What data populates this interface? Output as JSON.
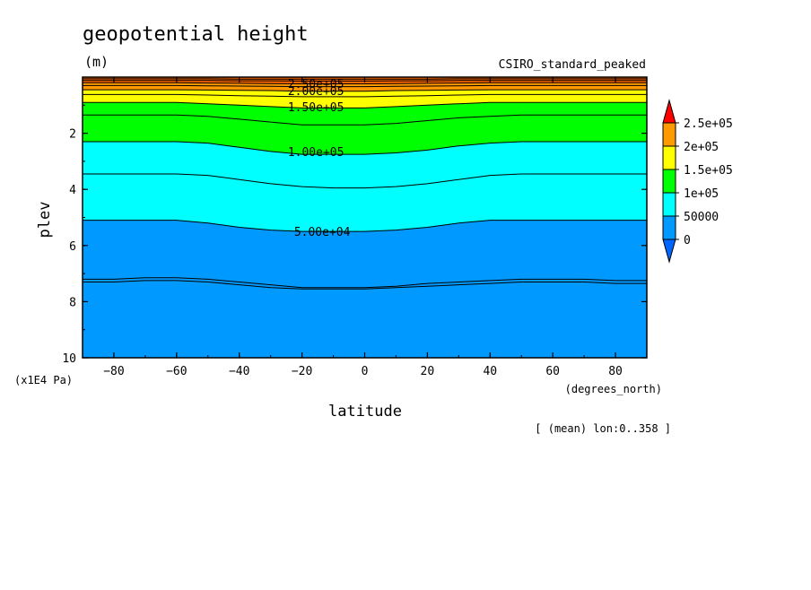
{
  "title": "geopotential height",
  "units": "(m)",
  "model": "CSIRO_standard_peaked",
  "footer_note": "[ (mean) lon:0..358 ]",
  "chart_data": {
    "type": "contour",
    "title": "geopotential height",
    "xlabel": "latitude",
    "xunits": "(degrees_north)",
    "ylabel": "plev",
    "yunits": "(x1E4 Pa)",
    "xlim": [
      -90,
      90
    ],
    "ylim": [
      10,
      0
    ],
    "x_ticks": [
      -80,
      -60,
      -40,
      -20,
      0,
      20,
      40,
      60,
      80
    ],
    "y_ticks": [
      2,
      4,
      6,
      8,
      10
    ],
    "colorbar": {
      "labels": [
        "2.5e+05",
        "2e+05",
        "1.5e+05",
        "1e+05",
        "50000",
        "0"
      ],
      "colors": [
        "#ff0000",
        "#ff9900",
        "#ffff00",
        "#00ff00",
        "#00ffff",
        "#0099ff",
        "#0066ff"
      ]
    },
    "filled_levels": [
      {
        "min": 0,
        "max": 50000,
        "color": "#0099ff",
        "boundary": [
          5.1,
          5.1,
          5.1,
          5.1,
          5.2,
          5.35,
          5.45,
          5.5,
          5.5,
          5.5,
          5.45,
          5.35,
          5.2,
          5.1,
          5.1,
          5.1,
          5.1,
          5.1,
          5.1
        ]
      },
      {
        "min": 50000,
        "max": 100000,
        "color": "#00ffff",
        "boundary": [
          2.3,
          2.3,
          2.3,
          2.3,
          2.35,
          2.5,
          2.65,
          2.75,
          2.75,
          2.75,
          2.7,
          2.6,
          2.45,
          2.35,
          2.3,
          2.3,
          2.3,
          2.3,
          2.3
        ]
      },
      {
        "min": 100000,
        "max": 150000,
        "color": "#00ff00",
        "boundary": [
          0.9,
          0.9,
          0.9,
          0.9,
          0.95,
          1.0,
          1.05,
          1.1,
          1.1,
          1.1,
          1.05,
          1.0,
          0.95,
          0.9,
          0.9,
          0.9,
          0.9,
          0.9,
          0.9
        ]
      },
      {
        "min": 150000,
        "max": 200000,
        "color": "#ffff00",
        "boundary": [
          0.45,
          0.45,
          0.45,
          0.45,
          0.46,
          0.47,
          0.48,
          0.5,
          0.5,
          0.5,
          0.48,
          0.47,
          0.46,
          0.45,
          0.45,
          0.45,
          0.45,
          0.45,
          0.45
        ]
      },
      {
        "min": 200000,
        "max": 250000,
        "color": "#ff9900",
        "boundary": [
          0.2,
          0.2,
          0.2,
          0.2,
          0.21,
          0.22,
          0.23,
          0.24,
          0.24,
          0.24,
          0.23,
          0.22,
          0.21,
          0.2,
          0.2,
          0.2,
          0.2,
          0.2,
          0.2
        ]
      }
    ],
    "contour_lines": [
      {
        "value": 25000,
        "label": "",
        "y": [
          7.2,
          7.2,
          7.15,
          7.15,
          7.2,
          7.3,
          7.4,
          7.5,
          7.5,
          7.5,
          7.45,
          7.35,
          7.3,
          7.25,
          7.2,
          7.2,
          7.2,
          7.25,
          7.25
        ]
      },
      {
        "value": 25000,
        "label": "",
        "y": [
          7.3,
          7.3,
          7.25,
          7.25,
          7.3,
          7.4,
          7.5,
          7.55,
          7.55,
          7.55,
          7.5,
          7.45,
          7.4,
          7.35,
          7.3,
          7.3,
          7.3,
          7.35,
          7.35
        ]
      },
      {
        "value": 50000,
        "label": "5.00e+04",
        "label_x": -25,
        "y": [
          5.1,
          5.1,
          5.1,
          5.1,
          5.2,
          5.35,
          5.45,
          5.5,
          5.5,
          5.5,
          5.45,
          5.35,
          5.2,
          5.1,
          5.1,
          5.1,
          5.1,
          5.1,
          5.1
        ]
      },
      {
        "value": 75000,
        "label": "",
        "y": [
          3.45,
          3.45,
          3.45,
          3.45,
          3.5,
          3.65,
          3.8,
          3.9,
          3.95,
          3.95,
          3.9,
          3.8,
          3.65,
          3.5,
          3.45,
          3.45,
          3.45,
          3.45,
          3.45
        ]
      },
      {
        "value": 100000,
        "label": "1.00e+05",
        "label_x": -27,
        "y": [
          2.3,
          2.3,
          2.3,
          2.3,
          2.35,
          2.5,
          2.65,
          2.75,
          2.75,
          2.75,
          2.7,
          2.6,
          2.45,
          2.35,
          2.3,
          2.3,
          2.3,
          2.3,
          2.3
        ]
      },
      {
        "value": 125000,
        "label": "",
        "y": [
          1.35,
          1.35,
          1.35,
          1.35,
          1.4,
          1.5,
          1.6,
          1.7,
          1.7,
          1.7,
          1.65,
          1.55,
          1.45,
          1.4,
          1.35,
          1.35,
          1.35,
          1.35,
          1.35
        ]
      },
      {
        "value": 150000,
        "label": "1.50e+05",
        "label_x": -27,
        "y": [
          0.9,
          0.9,
          0.9,
          0.9,
          0.95,
          1.0,
          1.05,
          1.1,
          1.1,
          1.1,
          1.05,
          1.0,
          0.95,
          0.9,
          0.9,
          0.9,
          0.9,
          0.9,
          0.9
        ]
      },
      {
        "value": 175000,
        "label": "",
        "y": [
          0.62,
          0.62,
          0.62,
          0.62,
          0.64,
          0.66,
          0.68,
          0.7,
          0.7,
          0.7,
          0.68,
          0.66,
          0.64,
          0.62,
          0.62,
          0.62,
          0.62,
          0.62,
          0.62
        ]
      },
      {
        "value": 200000,
        "label": "2.00e+05",
        "label_x": -27,
        "y": [
          0.45,
          0.45,
          0.45,
          0.45,
          0.46,
          0.47,
          0.48,
          0.5,
          0.5,
          0.5,
          0.48,
          0.47,
          0.46,
          0.45,
          0.45,
          0.45,
          0.45,
          0.45,
          0.45
        ]
      },
      {
        "value": 225000,
        "label": "",
        "y": [
          0.3,
          0.3,
          0.3,
          0.3,
          0.31,
          0.32,
          0.33,
          0.34,
          0.34,
          0.34,
          0.33,
          0.32,
          0.31,
          0.3,
          0.3,
          0.3,
          0.3,
          0.3,
          0.3
        ]
      },
      {
        "value": 250000,
        "label": "2.50e+05",
        "label_x": -27,
        "y": [
          0.2,
          0.2,
          0.2,
          0.2,
          0.21,
          0.22,
          0.23,
          0.24,
          0.24,
          0.24,
          0.23,
          0.22,
          0.21,
          0.2,
          0.2,
          0.2,
          0.2,
          0.2,
          0.2
        ]
      },
      {
        "value": 275000,
        "label": "",
        "y": [
          0.12,
          0.12,
          0.12,
          0.12,
          0.12,
          0.13,
          0.13,
          0.14,
          0.14,
          0.14,
          0.13,
          0.13,
          0.12,
          0.12,
          0.12,
          0.12,
          0.12,
          0.12,
          0.12
        ]
      },
      {
        "value": 300000,
        "label": "",
        "y": [
          0.06,
          0.06,
          0.06,
          0.06,
          0.06,
          0.07,
          0.07,
          0.07,
          0.07,
          0.07,
          0.07,
          0.07,
          0.06,
          0.06,
          0.06,
          0.06,
          0.06,
          0.06,
          0.06
        ]
      }
    ]
  }
}
